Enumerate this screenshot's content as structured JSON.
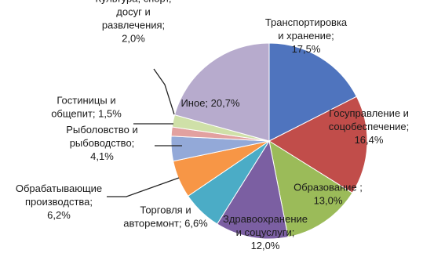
{
  "chart_data": {
    "type": "pie",
    "title": "",
    "start_angle_deg": 0,
    "direction": "clockwise",
    "slices": [
      {
        "label_lines": [
          "Транспортировка",
          "и хранение;",
          "17,5%"
        ],
        "name": "Транспортировка и хранение",
        "value": 17.5,
        "color": "#4f74be"
      },
      {
        "label_lines": [
          "Госуправление и",
          "соцобеспечение;",
          "16,4%"
        ],
        "name": "Госуправление и соцобеспечение",
        "value": 16.4,
        "color": "#c14d4a"
      },
      {
        "label_lines": [
          "Образование ;",
          "13,0%"
        ],
        "name": "Образование",
        "value": 13.0,
        "color": "#9bbb59"
      },
      {
        "label_lines": [
          "Здравоохранение",
          "и соцуслуги;",
          "12,0%"
        ],
        "name": "Здравоохранение и соцуслуги",
        "value": 12.0,
        "color": "#7b5fa2"
      },
      {
        "label_lines": [
          "Торговля и",
          "авторемонт; 6,6%"
        ],
        "name": "Торговля и авторемонт",
        "value": 6.6,
        "color": "#4bacc6"
      },
      {
        "label_lines": [
          "Обрабатывающие",
          "производства;",
          "6,2%"
        ],
        "name": "Обрабатывающие производства",
        "value": 6.2,
        "color": "#f79646"
      },
      {
        "label_lines": [
          "Рыболовство и",
          "рыбоводство;",
          "4,1%"
        ],
        "name": "Рыболовство и рыбоводство",
        "value": 4.1,
        "color": "#93a9d8"
      },
      {
        "label_lines": [
          "Гостиницы и",
          "общепит; 1,5%"
        ],
        "name": "Гостиницы и общепит",
        "value": 1.5,
        "color": "#e2a1a0"
      },
      {
        "label_lines": [
          "Культура, спорт,",
          "досуг и",
          "развлечения;",
          "2,0%"
        ],
        "name": "Культура, спорт, досуг и развлечения",
        "value": 2.0,
        "color": "#cfe0a8"
      },
      {
        "label_lines": [
          "Иное; 20,7%"
        ],
        "name": "Иное",
        "value": 20.7,
        "color": "#b7abcd"
      }
    ]
  }
}
